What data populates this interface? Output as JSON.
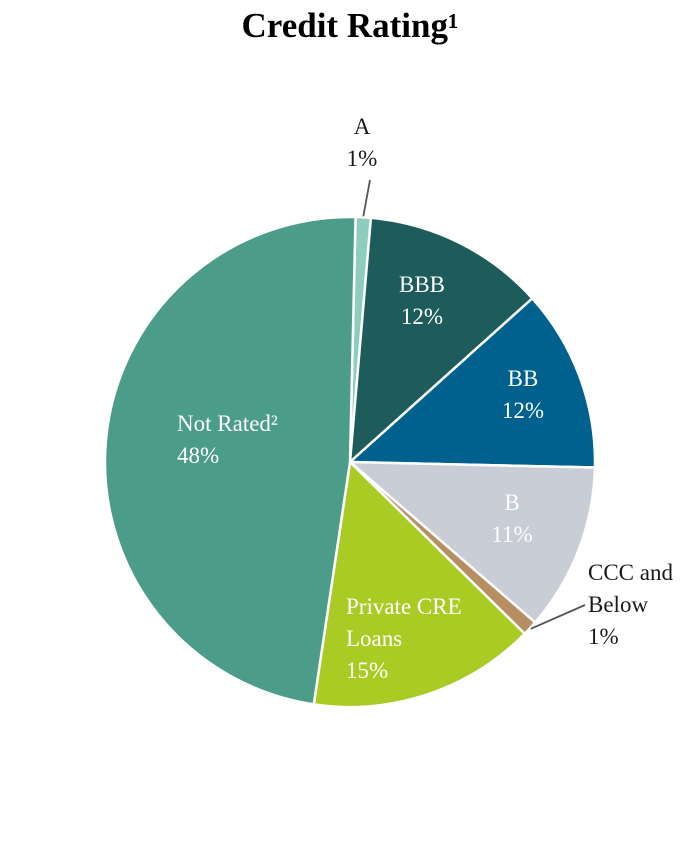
{
  "chart_data": {
    "type": "pie",
    "title": "Credit Rating¹",
    "slices": [
      {
        "label": "A",
        "value": 1,
        "value_text": "1%",
        "color": "#8ecdbd"
      },
      {
        "label": "BBB",
        "value": 12,
        "value_text": "12%",
        "color": "#1d5c5a"
      },
      {
        "label": "BB",
        "value": 12,
        "value_text": "12%",
        "color": "#00618f"
      },
      {
        "label": "B",
        "value": 11,
        "value_text": "11%",
        "color": "#c9ced6"
      },
      {
        "label": "CCC and Below",
        "value": 1,
        "value_text": "1%",
        "color": "#b68e62"
      },
      {
        "label": "Private CRE Loans",
        "value": 15,
        "value_text": "15%",
        "color": "#a9cb24"
      },
      {
        "label": "Not Rated²",
        "value": 48,
        "value_text": "48%",
        "color": "#4b9d89"
      }
    ]
  }
}
